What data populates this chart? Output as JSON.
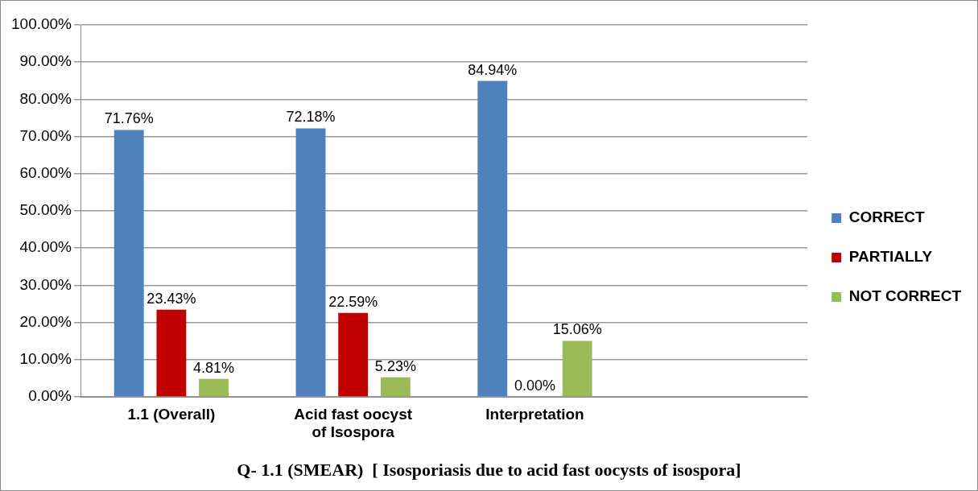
{
  "chart_data": {
    "type": "bar",
    "title": "Q- 1.1 (SMEAR)  [ Isosporiasis due to acid fast oocysts of isospora]",
    "categories": [
      "1.1 (Overall)",
      "Acid fast oocyst of Isospora",
      "Interpretation",
      null
    ],
    "series": [
      {
        "name": "CORRECT",
        "color": "#4f81bd",
        "values": [
          71.76,
          72.18,
          84.94,
          null
        ],
        "value_labels": [
          "71.76%",
          "72.18%",
          "84.94%",
          null
        ]
      },
      {
        "name": "PARTIALLY",
        "color": "#c00000",
        "values": [
          23.43,
          22.59,
          0,
          null
        ],
        "value_labels": [
          "23.43%",
          "22.59%",
          "0.00%",
          null
        ]
      },
      {
        "name": "NOT CORRECT",
        "color": "#9bbb59",
        "values": [
          4.81,
          5.23,
          15.06,
          null
        ],
        "value_labels": [
          "4.81%",
          "5.23%",
          "15.06%",
          null
        ]
      }
    ],
    "ylim": [
      0,
      100
    ],
    "yticks": [
      {
        "value": 0,
        "label": "0.00%"
      },
      {
        "value": 10,
        "label": "10.00%"
      },
      {
        "value": 20,
        "label": "20.00%"
      },
      {
        "value": 30,
        "label": "30.00%"
      },
      {
        "value": 40,
        "label": "40.00%"
      },
      {
        "value": 50,
        "label": "50.00%"
      },
      {
        "value": 60,
        "label": "60.00%"
      },
      {
        "value": 70,
        "label": "70.00%"
      },
      {
        "value": 80,
        "label": "80.00%"
      },
      {
        "value": 90,
        "label": "90.00%"
      },
      {
        "value": 100,
        "label": "100.00%"
      }
    ],
    "grid": "y",
    "legend": "right"
  }
}
